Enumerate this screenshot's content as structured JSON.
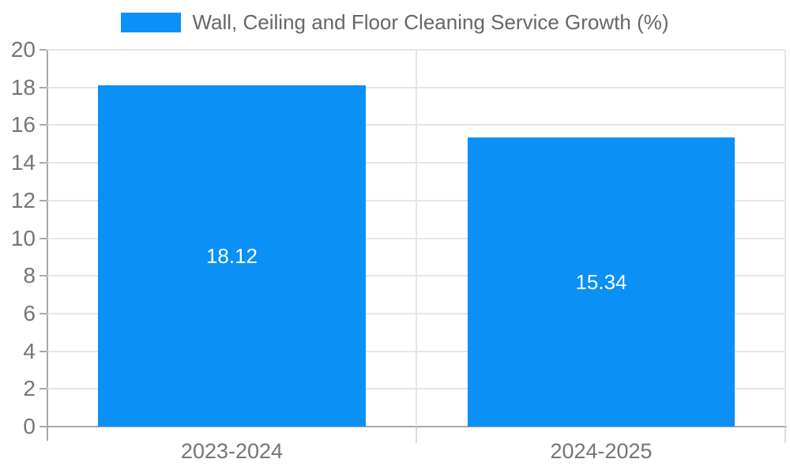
{
  "legend": {
    "label": "Wall, Ceiling and Floor Cleaning Service Growth (%)"
  },
  "chart_data": {
    "type": "bar",
    "title": "",
    "categories": [
      "2023-2024",
      "2024-2025"
    ],
    "values": [
      18.12,
      15.34
    ],
    "data_labels": [
      "18.12",
      "15.34"
    ],
    "series": [
      {
        "name": "Wall, Ceiling and Floor Cleaning Service Growth (%)",
        "values": [
          18.12,
          15.34
        ]
      }
    ],
    "xlabel": "",
    "ylabel": "",
    "ylim": [
      0,
      20
    ],
    "ytick_interval": 2,
    "yticks": [
      "0",
      "2",
      "4",
      "6",
      "8",
      "10",
      "12",
      "14",
      "16",
      "18",
      "20"
    ],
    "grid": "horizontal gridlines + vertical category boundary lines",
    "legend_position": "top-center",
    "bar_color": "#0a90f7",
    "data_label_color": "#ffffff"
  },
  "colors": {
    "bar": "#0a90f7",
    "grid_line": "#e5e5e5",
    "axis_line": "#a9a9a9",
    "tick_label_text": "#757575",
    "legend_text": "#666666",
    "data_label_text": "#ffffff",
    "background": "#ffffff"
  }
}
